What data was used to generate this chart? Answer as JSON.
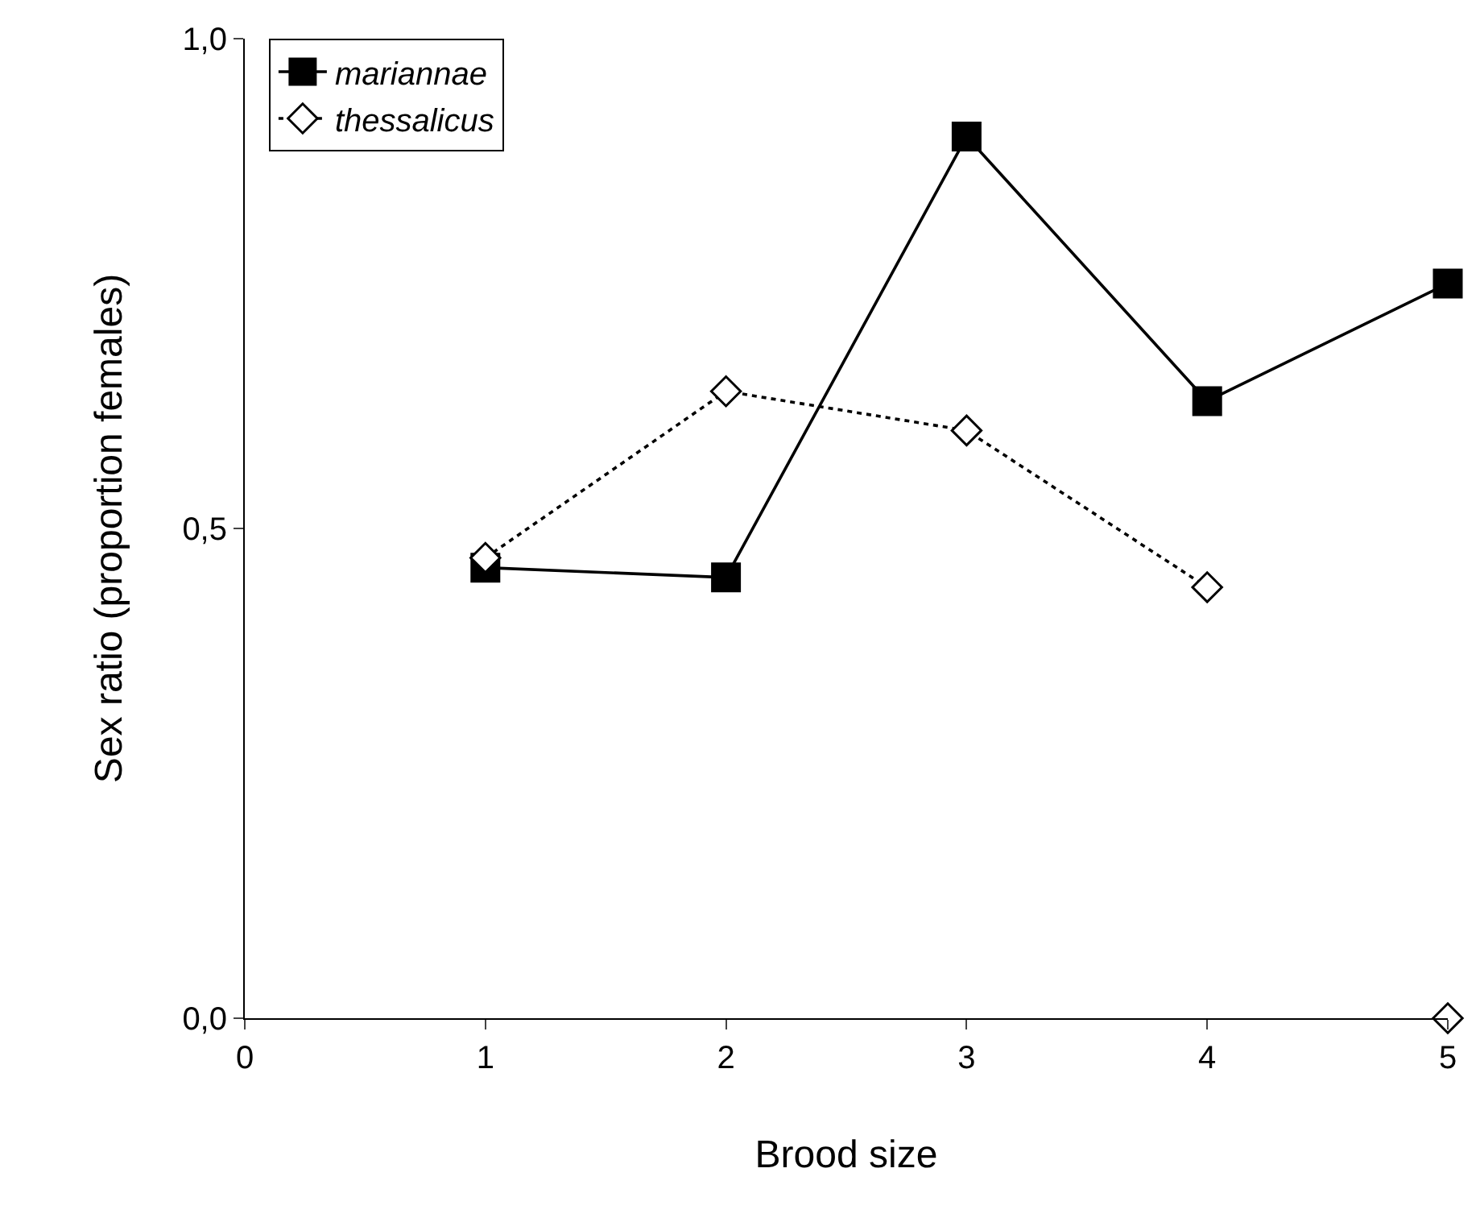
{
  "chart_data": {
    "type": "line",
    "xlabel": "Brood size",
    "ylabel": "Sex ratio (proportion females)",
    "x": [
      1,
      2,
      3,
      4,
      5
    ],
    "series": [
      {
        "name": "mariannae",
        "color": "#000000",
        "values": [
          0.46,
          0.45,
          0.9,
          0.63,
          0.75
        ],
        "marker": "square",
        "line_style": "solid"
      },
      {
        "name": "thessalicus",
        "color": "#000000",
        "values": [
          0.47,
          0.64,
          0.6,
          0.44,
          null
        ],
        "marker": "diamond",
        "line_style": "dotted"
      },
      {
        "type": "scatter",
        "x": [
          5
        ],
        "color": "#000000",
        "values": [
          0.0
        ],
        "marker": "diamond"
      }
    ],
    "xlim": [
      0,
      5
    ],
    "xticks": [
      0,
      1,
      2,
      3,
      4,
      5
    ],
    "ylim": [
      0,
      1
    ],
    "yticks": [
      {
        "value": 0,
        "label": "0,0"
      },
      {
        "value": 0.5,
        "label": "0,5"
      },
      {
        "value": 1,
        "label": "1,0"
      }
    ],
    "legend": "top left"
  }
}
